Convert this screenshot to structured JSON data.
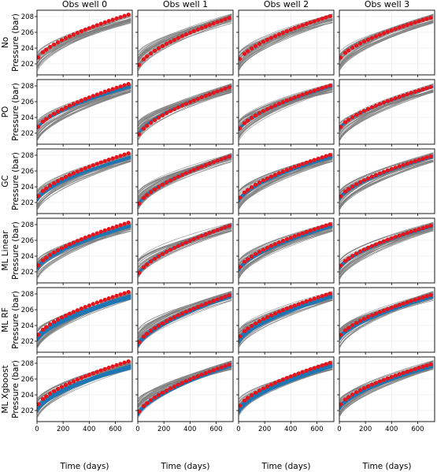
{
  "chart_data": {
    "type": "line",
    "layout": "grid of 6 rows x 4 columns",
    "column_titles": [
      "Obs well 0",
      "Obs well 1",
      "Obs well 2",
      "Obs well 3"
    ],
    "row_labels": [
      "No",
      "PO",
      "GC",
      "ML Linear",
      "ML RF",
      "ML Xgboost"
    ],
    "ylabel": "Pressure (bar)",
    "xlabel": "Time (days)",
    "xlim": [
      0,
      730
    ],
    "ylim": [
      200.6,
      208.8
    ],
    "xticks": [
      0,
      200,
      400,
      600
    ],
    "yticks": [
      202,
      204,
      206,
      208
    ],
    "x_tick_labels": [
      "0",
      "200",
      "400",
      "600"
    ],
    "y_tick_labels": [
      "202",
      "204",
      "206",
      "208"
    ],
    "grid": true,
    "observations_x": [
      10,
      45,
      70,
      100,
      130,
      160,
      190,
      220,
      250,
      280,
      310,
      340,
      370,
      400,
      430,
      460,
      490,
      520,
      550,
      580,
      610,
      640,
      670,
      700
    ],
    "observations": [
      {
        "well": "Obs well 0",
        "start": 202.4,
        "end": 208.4,
        "color": "#e8141b"
      },
      {
        "well": "Obs well 1",
        "start": 201.4,
        "end": 208.0,
        "color": "#e8141b"
      },
      {
        "well": "Obs well 2",
        "start": 202.2,
        "end": 208.2,
        "color": "#e8141b"
      },
      {
        "well": "Obs well 3",
        "start": 202.4,
        "end": 208.0,
        "color": "#e8141b"
      }
    ],
    "prior_ensemble": {
      "color": "#808080",
      "members": 40,
      "start_range": [
        200.8,
        203.4
      ],
      "end_range": [
        207.2,
        208.4
      ]
    },
    "posterior_color": "#1f77b4",
    "posterior_rows": [
      "PO",
      "GC",
      "ML Linear",
      "ML RF",
      "ML Xgboost"
    ],
    "posterior_ranges": [
      [
        [
          202.2,
          202.6,
          207.8,
          208.2
        ],
        [
          201.4,
          201.8,
          207.9,
          208.1
        ],
        [
          202.0,
          202.4,
          207.9,
          208.2
        ],
        [
          202.2,
          202.6,
          207.8,
          208.1
        ]
      ],
      [
        [
          201.9,
          202.6,
          207.6,
          208.0
        ],
        [
          201.2,
          201.7,
          207.8,
          208.1
        ],
        [
          201.7,
          202.4,
          207.7,
          208.1
        ],
        [
          202.0,
          202.6,
          207.7,
          208.1
        ]
      ],
      [
        [
          201.9,
          202.6,
          207.7,
          208.1
        ],
        [
          201.2,
          201.7,
          207.8,
          208.1
        ],
        [
          201.7,
          202.4,
          207.7,
          208.1
        ],
        [
          202.0,
          202.6,
          207.7,
          208.1
        ]
      ],
      [
        [
          201.7,
          202.6,
          207.4,
          208.0
        ],
        [
          201.0,
          201.7,
          207.6,
          208.1
        ],
        [
          201.4,
          202.3,
          207.5,
          208.1
        ],
        [
          201.8,
          202.6,
          207.5,
          208.1
        ]
      ],
      [
        [
          201.6,
          202.4,
          207.3,
          207.9
        ],
        [
          201.0,
          201.7,
          207.6,
          208.1
        ],
        [
          201.4,
          202.3,
          207.5,
          208.1
        ],
        [
          201.8,
          202.5,
          207.5,
          208.0
        ]
      ]
    ]
  }
}
